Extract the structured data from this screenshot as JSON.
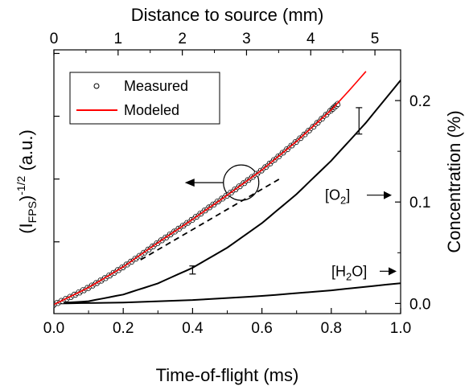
{
  "chart_data": {
    "type": "line",
    "x_bottom": {
      "label": "Time-of-flight (ms)",
      "range": [
        0.0,
        1.0
      ],
      "ticks": [
        "0.0",
        "0.2",
        "0.4",
        "0.6",
        "0.8",
        "1.0"
      ]
    },
    "x_top": {
      "label": "Distance to source (mm)",
      "range": [
        0,
        5.4
      ],
      "ticks": [
        "0",
        "1",
        "2",
        "3",
        "4",
        "5"
      ]
    },
    "y_left": {
      "label_main": "(I",
      "label_sub": "FPS",
      "label_close": ")",
      "label_sup": "-1/2",
      "label_units": " (a.u.)",
      "tick_labels_shown": false
    },
    "y_right": {
      "label": "Concentration (%)",
      "range": [
        -0.01,
        0.25
      ],
      "ticks": [
        "0.0",
        "0.1",
        "0.2"
      ]
    },
    "legend": {
      "placement": "top-left",
      "entries": [
        {
          "label": "Measured",
          "marker": "open-circle"
        },
        {
          "label": "Modeled",
          "color": "#ff0000"
        }
      ]
    },
    "series": [
      {
        "name": "Measured",
        "axis": "left",
        "x": [
          0.0,
          0.05,
          0.1,
          0.15,
          0.2,
          0.25,
          0.3,
          0.35,
          0.4,
          0.45,
          0.5,
          0.55,
          0.6,
          0.65,
          0.7,
          0.75,
          0.8,
          0.82
        ],
        "y": [
          0.0,
          0.045,
          0.095,
          0.15,
          0.21,
          0.275,
          0.345,
          0.41,
          0.475,
          0.545,
          0.61,
          0.68,
          0.75,
          0.83,
          0.91,
          0.995,
          1.085,
          1.12
        ]
      },
      {
        "name": "Modeled",
        "axis": "left",
        "x": [
          0.0,
          0.1,
          0.2,
          0.3,
          0.4,
          0.5,
          0.6,
          0.7,
          0.8,
          0.85,
          0.9
        ],
        "y": [
          0.0,
          0.095,
          0.21,
          0.345,
          0.475,
          0.61,
          0.75,
          0.91,
          1.085,
          1.19,
          1.3
        ]
      },
      {
        "axis": "left",
        "x": [
          0.25,
          0.65
        ],
        "y": [
          0.25,
          0.7
        ],
        "style": "dashed"
      },
      {
        "axis": "right",
        "x": [
          0.0,
          0.1,
          0.2,
          0.3,
          0.4,
          0.5,
          0.6,
          0.7,
          0.8,
          0.9,
          1.0
        ],
        "y": [
          0.0,
          0.0022,
          0.0088,
          0.0198,
          0.0352,
          0.055,
          0.0792,
          0.1078,
          0.1408,
          0.1782,
          0.22
        ]
      },
      {
        "axis": "right",
        "x": [
          0.0,
          0.2,
          0.4,
          0.6,
          0.8,
          1.0
        ],
        "y": [
          0.0,
          0.0009,
          0.0034,
          0.0074,
          0.0129,
          0.02
        ]
      }
    ],
    "error_bars": [
      {
        "x": 0.4,
        "y": 0.033,
        "err": 0.004
      },
      {
        "x": 0.88,
        "y": 0.18,
        "err": 0.013
      }
    ],
    "annotations": [
      {
        "text_main": "[O",
        "text_sub": "2",
        "text_close": "]",
        "points_to": "right axis"
      },
      {
        "text_main": "[H",
        "text_sub": "2",
        "text_close": "O]",
        "points_to": "right axis"
      },
      {
        "text_main": "",
        "marker": "circle with arrow",
        "points_to": "left axis"
      }
    ],
    "grid": false
  }
}
